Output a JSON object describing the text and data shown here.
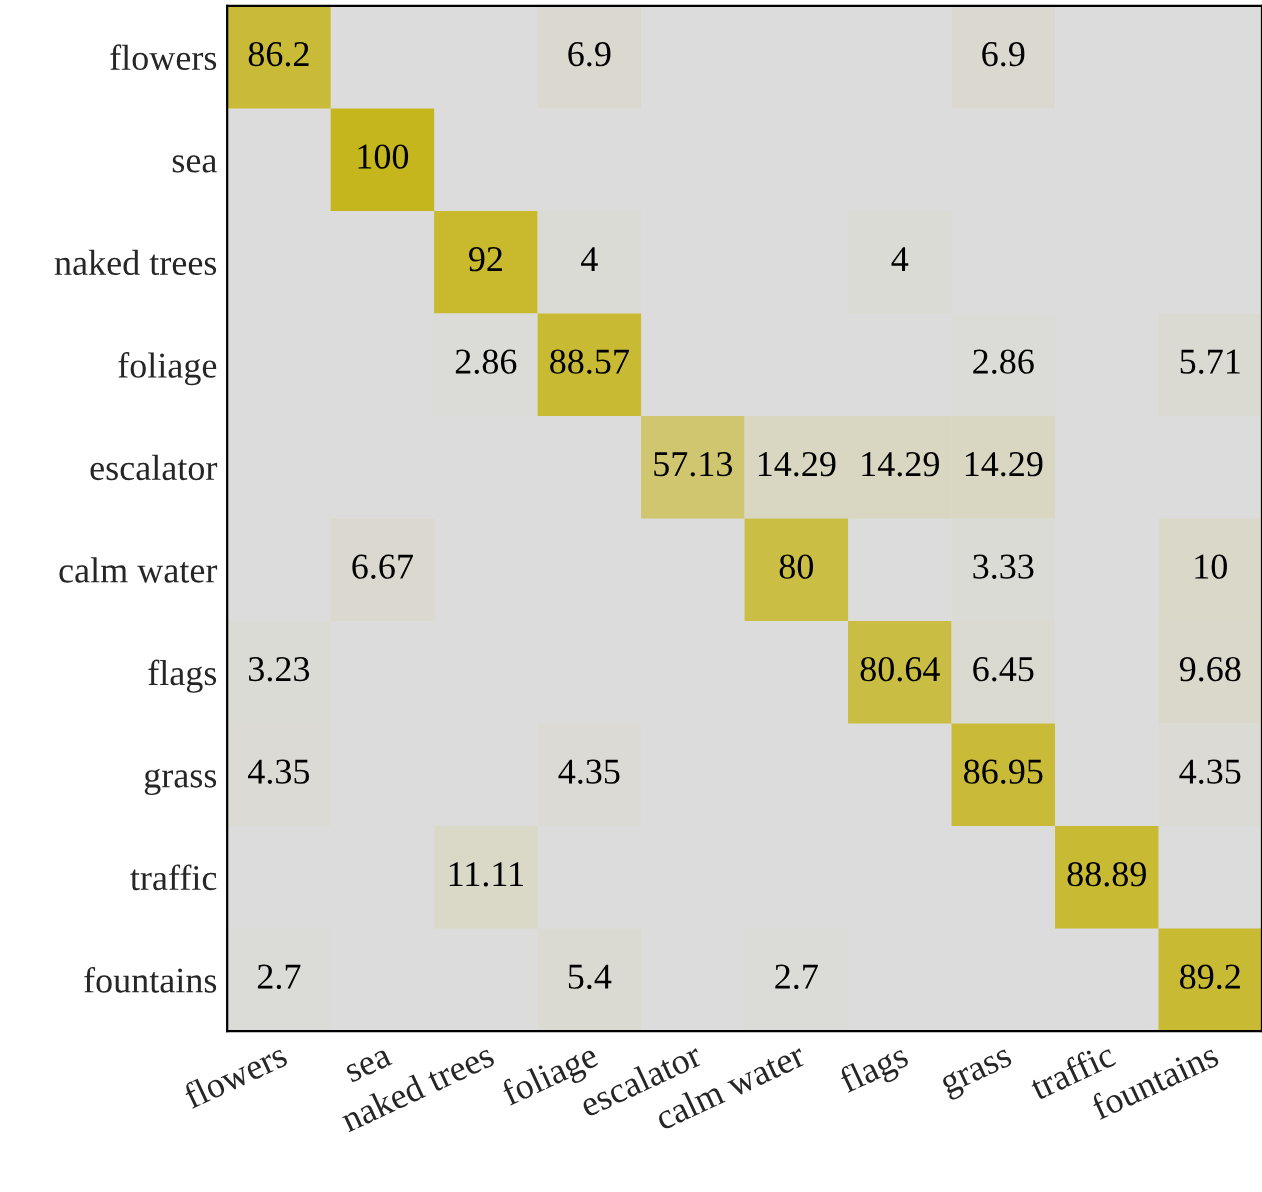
{
  "chart_data": {
    "type": "heatmap",
    "categories": [
      "flowers",
      "sea",
      "naked trees",
      "foliage",
      "escalator",
      "calm water",
      "flags",
      "grass",
      "traffic",
      "fountains"
    ],
    "y_categories": [
      "flowers",
      "sea",
      "naked trees",
      "foliage",
      "escalator",
      "calm water",
      "flags",
      "grass",
      "traffic",
      "fountains"
    ],
    "cells": [
      [
        86.2,
        null,
        null,
        6.9,
        null,
        null,
        null,
        6.9,
        null,
        null
      ],
      [
        null,
        100,
        null,
        null,
        null,
        null,
        null,
        null,
        null,
        null
      ],
      [
        null,
        null,
        92,
        4,
        null,
        null,
        4,
        null,
        null,
        null
      ],
      [
        null,
        null,
        2.86,
        88.57,
        null,
        null,
        null,
        2.86,
        null,
        5.71
      ],
      [
        null,
        null,
        null,
        null,
        57.13,
        14.29,
        14.29,
        14.29,
        null,
        null
      ],
      [
        null,
        6.67,
        null,
        null,
        null,
        80,
        null,
        3.33,
        null,
        10
      ],
      [
        3.23,
        null,
        null,
        null,
        null,
        null,
        80.64,
        6.45,
        null,
        9.68
      ],
      [
        4.35,
        null,
        null,
        4.35,
        null,
        null,
        null,
        86.95,
        null,
        4.35
      ],
      [
        null,
        null,
        11.11,
        null,
        null,
        null,
        null,
        null,
        88.89,
        null
      ],
      [
        2.7,
        null,
        null,
        5.4,
        null,
        2.7,
        null,
        null,
        null,
        89.2
      ]
    ],
    "data_labels": true
  }
}
